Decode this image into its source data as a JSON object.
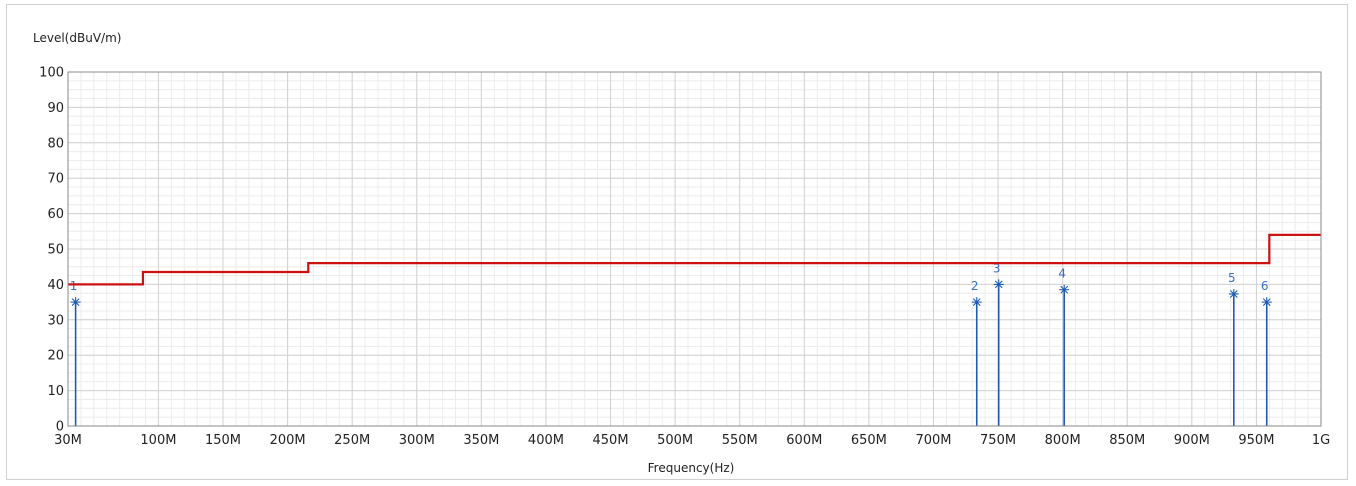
{
  "chart_data": {
    "type": "line",
    "ylabel": "Level(dBuV/m)",
    "xlabel": "Frequency(Hz)",
    "ylim": [
      0,
      100
    ],
    "xlim": [
      30,
      1000
    ],
    "grid": true,
    "y_ticks": [
      0,
      10,
      20,
      30,
      40,
      50,
      60,
      70,
      80,
      90,
      100
    ],
    "y_tick_labels": [
      "0",
      "10",
      "20",
      "30",
      "40",
      "50",
      "60",
      "70",
      "80",
      "90",
      "100"
    ],
    "x_ticks": [
      30,
      100,
      150,
      200,
      250,
      300,
      350,
      400,
      450,
      500,
      550,
      600,
      650,
      700,
      750,
      800,
      850,
      900,
      950,
      1000
    ],
    "x_tick_labels": [
      "30M",
      "100M",
      "150M",
      "200M",
      "250M",
      "300M",
      "350M",
      "400M",
      "450M",
      "500M",
      "550M",
      "600M",
      "650M",
      "700M",
      "750M",
      "800M",
      "850M",
      "900M",
      "950M",
      "1G"
    ],
    "limit_line": {
      "color": "#cc1111",
      "x": [
        30,
        88,
        88,
        216,
        216,
        960,
        960,
        1000
      ],
      "y": [
        40,
        40,
        43.5,
        43.5,
        46,
        46,
        54,
        54
      ]
    },
    "markers": {
      "color": "#1f5bb5",
      "labels": [
        "1",
        "2",
        "3",
        "4",
        "5",
        "6"
      ],
      "x": [
        35.9,
        733.5,
        750.5,
        801.2,
        932.5,
        958.0
      ],
      "y": [
        35,
        35,
        40,
        38.5,
        37.3,
        35
      ]
    }
  }
}
